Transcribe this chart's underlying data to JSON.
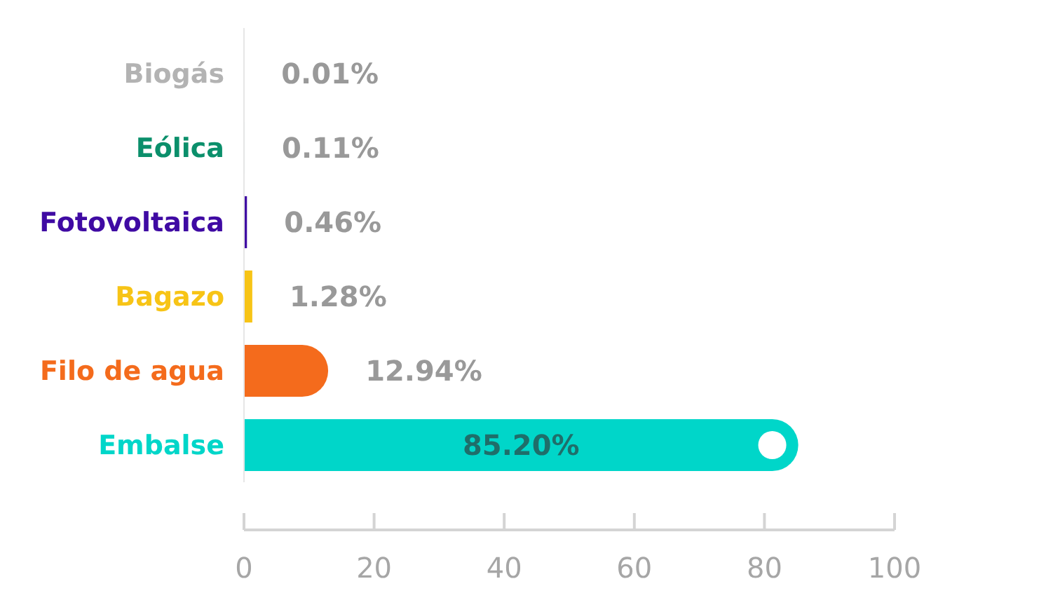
{
  "chart_data": {
    "type": "bar",
    "orientation": "horizontal",
    "categories": [
      "Biogás",
      "Eólica",
      "Fotovoltaica",
      "Bagazo",
      "Filo de agua",
      "Embalse"
    ],
    "values": [
      0.01,
      0.11,
      0.46,
      1.28,
      12.94,
      85.2
    ],
    "colors": [
      "#b3b3b3",
      "#0b8f6b",
      "#3f0aa3",
      "#f7c416",
      "#f46b1c",
      "#00d6c9"
    ],
    "value_labels": [
      "0.01%",
      "0.11%",
      "0.46%",
      "1.28%",
      "12.94%",
      "85.20%"
    ],
    "xlim": [
      0,
      100
    ],
    "xticks": [
      0,
      20,
      40,
      60,
      80,
      100
    ],
    "grid": false
  }
}
